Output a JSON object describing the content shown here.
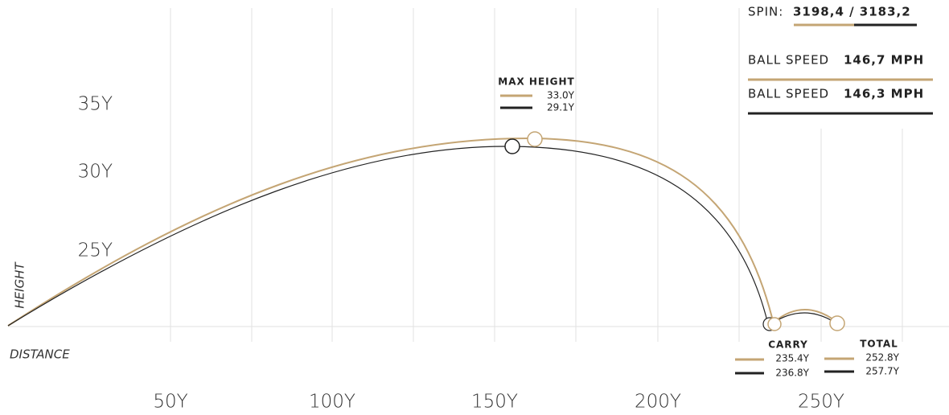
{
  "axes": {
    "y_title": "HEIGHT",
    "x_title": "DISTANCE",
    "y_labels": [
      "35Y",
      "30Y",
      "25Y"
    ],
    "x_labels": [
      "50Y",
      "100Y",
      "150Y",
      "200Y",
      "250Y"
    ]
  },
  "max_height": {
    "title": "MAX HEIGHT",
    "values": [
      "33.0Y",
      "29.1Y"
    ]
  },
  "carry": {
    "title": "CARRY",
    "values": [
      "235.4Y",
      "236.8Y"
    ]
  },
  "total": {
    "title": "TOTAL",
    "values": [
      "252.8Y",
      "257.7Y"
    ]
  },
  "panel": {
    "spin_label": "SPIN:",
    "spin_value": "3198,4 / 3183,2",
    "speeds": [
      {
        "label": "BALL SPEED",
        "value": "146,7 MPH"
      },
      {
        "label": "BALL SPEED",
        "value": "146,3 MPH"
      }
    ]
  }
}
